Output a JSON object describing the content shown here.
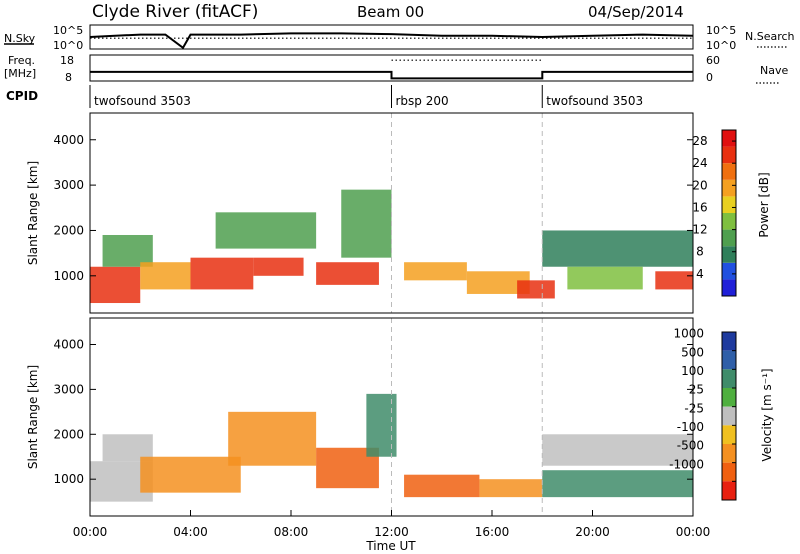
{
  "header": {
    "station": "Clyde River (fitACF)",
    "beam": "Beam 00",
    "date": "04/Sep/2014"
  },
  "colors": {
    "axis": "#000000",
    "dashed_marker": "#bbbbbb",
    "power_scale": [
      "#2020d8",
      "#2050e0",
      "#2f7f5a",
      "#4f9f4f",
      "#7fbf3f",
      "#e8d020",
      "#f4a020",
      "#f07010",
      "#e83010",
      "#e01010"
    ],
    "velocity_scale": [
      "#1e3a9e",
      "#2f5fa8",
      "#3f8c6a",
      "#4faf3f",
      "#bfbfbf",
      "#f0c020",
      "#f49020",
      "#f06010",
      "#e82010"
    ]
  },
  "chart_data": [
    {
      "type": "line",
      "panel": "noise",
      "left_label": "N.Sky",
      "left_ticks": [
        "10^5",
        "10^0"
      ],
      "right_label": "N.Search",
      "right_ticks": [
        "10^5",
        "10^0"
      ],
      "series": [
        {
          "name": "N.Sky",
          "style": "solid",
          "x": [
            0,
            1,
            2,
            3,
            3.7,
            4,
            6,
            8,
            10,
            12,
            14,
            16,
            18,
            20,
            22,
            24
          ],
          "values": [
            0.5,
            0.55,
            0.6,
            0.6,
            0.05,
            0.6,
            0.6,
            0.65,
            0.65,
            0.62,
            0.55,
            0.55,
            0.5,
            0.55,
            0.6,
            0.55
          ]
        },
        {
          "name": "N.Search",
          "style": "dotted",
          "x": [
            0,
            24
          ],
          "values": [
            0.45,
            0.45
          ]
        }
      ]
    },
    {
      "type": "line",
      "panel": "frequency",
      "left_label": "Freq.",
      "left_unit": "[MHz]",
      "left_ticks": [
        "18",
        "8"
      ],
      "right_label": "Nave",
      "right_ticks": [
        "60",
        "0"
      ],
      "series": [
        {
          "name": "Freq.",
          "style": "solid",
          "x": [
            0,
            12,
            12,
            18,
            18,
            24
          ],
          "values": [
            0.35,
            0.35,
            0.1,
            0.1,
            0.35,
            0.35
          ]
        },
        {
          "name": "Nave",
          "style": "dotted",
          "x": [
            12,
            18
          ],
          "values": [
            0.8,
            0.8
          ]
        }
      ]
    },
    {
      "type": "table",
      "panel": "cpid",
      "label": "CPID",
      "segments": [
        {
          "name": "twofsound 3503",
          "start": 0,
          "end": 12
        },
        {
          "name": "rbsp 200",
          "start": 12,
          "end": 18
        },
        {
          "name": "twofsound 3503",
          "start": 18,
          "end": 24
        }
      ]
    },
    {
      "type": "heatmap",
      "panel": "power",
      "ylabel": "Slant Range [km]",
      "ylim": [
        180,
        4590
      ],
      "yticks": [
        1000,
        2000,
        3000,
        4000
      ],
      "colorbar_label": "Power [dB]",
      "colorbar_ticks": [
        4,
        8,
        12,
        16,
        20,
        24,
        28
      ],
      "colorbar_range": [
        0,
        30
      ],
      "bands": [
        {
          "x": [
            0.0,
            2.0
          ],
          "range": [
            400,
            1200
          ],
          "value": 26
        },
        {
          "x": [
            0.5,
            2.5
          ],
          "range": [
            1200,
            1900
          ],
          "value": 10
        },
        {
          "x": [
            2.0,
            4.0
          ],
          "range": [
            700,
            1300
          ],
          "value": 20
        },
        {
          "x": [
            4.0,
            6.5
          ],
          "range": [
            700,
            1400
          ],
          "value": 24
        },
        {
          "x": [
            6.5,
            8.5
          ],
          "range": [
            1000,
            1400
          ],
          "value": 26
        },
        {
          "x": [
            5.0,
            9.0
          ],
          "range": [
            1600,
            2400
          ],
          "value": 10
        },
        {
          "x": [
            9.0,
            11.5
          ],
          "range": [
            800,
            1300
          ],
          "value": 24
        },
        {
          "x": [
            10.0,
            12.0
          ],
          "range": [
            1400,
            2900
          ],
          "value": 9
        },
        {
          "x": [
            12.5,
            15.0
          ],
          "range": [
            900,
            1300
          ],
          "value": 20
        },
        {
          "x": [
            15.0,
            17.5
          ],
          "range": [
            600,
            1100
          ],
          "value": 18
        },
        {
          "x": [
            17.0,
            18.5
          ],
          "range": [
            500,
            900
          ],
          "value": 24
        },
        {
          "x": [
            18.0,
            24.0
          ],
          "range": [
            1200,
            2000
          ],
          "value": 8
        },
        {
          "x": [
            19.0,
            22.0
          ],
          "range": [
            700,
            1200
          ],
          "value": 12
        },
        {
          "x": [
            22.5,
            24.0
          ],
          "range": [
            700,
            1100
          ],
          "value": 26
        }
      ]
    },
    {
      "type": "heatmap",
      "panel": "velocity",
      "xlabel": "Time UT",
      "ylabel": "Slant Range [km]",
      "x_ticks": [
        "00:00",
        "04:00",
        "08:00",
        "12:00",
        "16:00",
        "20:00",
        "00:00"
      ],
      "x_tick_values": [
        0,
        4,
        8,
        12,
        16,
        20,
        24
      ],
      "xlim": [
        0,
        24
      ],
      "ylim": [
        180,
        4590
      ],
      "yticks": [
        1000,
        2000,
        3000,
        4000
      ],
      "colorbar_label": "Velocity [m s⁻¹]",
      "colorbar_ticks": [
        "1000",
        "500",
        "100",
        "25",
        "-25",
        "-100",
        "-500",
        "-1000"
      ],
      "bands": [
        {
          "x": [
            0.0,
            2.5
          ],
          "range": [
            500,
            1400
          ],
          "value": 0
        },
        {
          "x": [
            0.5,
            2.5
          ],
          "range": [
            1400,
            2000
          ],
          "value": 0
        },
        {
          "x": [
            2.0,
            6.0
          ],
          "range": [
            700,
            1500
          ],
          "value": -300
        },
        {
          "x": [
            5.5,
            9.0
          ],
          "range": [
            1300,
            2500
          ],
          "value": -200
        },
        {
          "x": [
            9.0,
            11.5
          ],
          "range": [
            800,
            1700
          ],
          "value": -600
        },
        {
          "x": [
            11.0,
            12.2
          ],
          "range": [
            1500,
            2900
          ],
          "value": 150
        },
        {
          "x": [
            12.5,
            15.5
          ],
          "range": [
            600,
            1100
          ],
          "value": -400
        },
        {
          "x": [
            15.5,
            18.0
          ],
          "range": [
            600,
            1000
          ],
          "value": -300
        },
        {
          "x": [
            18.0,
            24.0
          ],
          "range": [
            600,
            1200
          ],
          "value": 300
        },
        {
          "x": [
            18.0,
            24.0
          ],
          "range": [
            1300,
            2000
          ],
          "value": 0
        }
      ]
    }
  ]
}
